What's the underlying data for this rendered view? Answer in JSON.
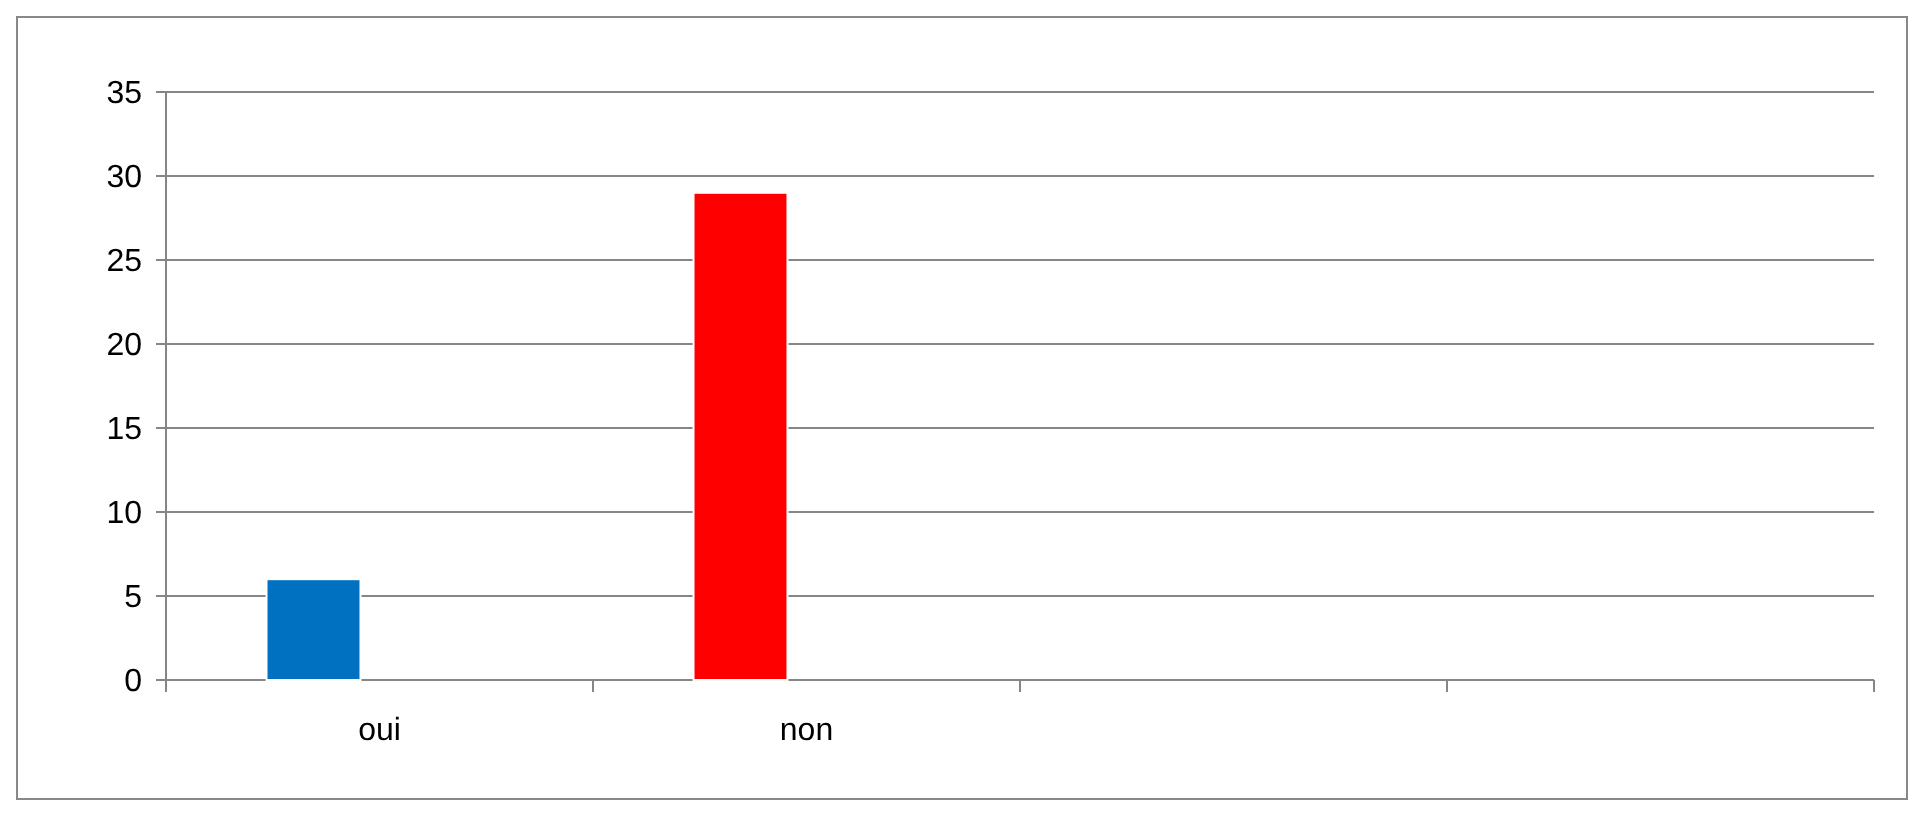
{
  "chart_data": {
    "type": "bar",
    "categories": [
      "oui",
      "non",
      null,
      null
    ],
    "values": [
      6,
      29,
      null,
      null
    ],
    "colors": [
      "#0070c0",
      "#ff0000",
      null,
      null
    ],
    "ylim": [
      0,
      35
    ],
    "yticks": [
      0,
      5,
      10,
      15,
      20,
      25,
      30,
      35
    ],
    "grid": "y"
  }
}
